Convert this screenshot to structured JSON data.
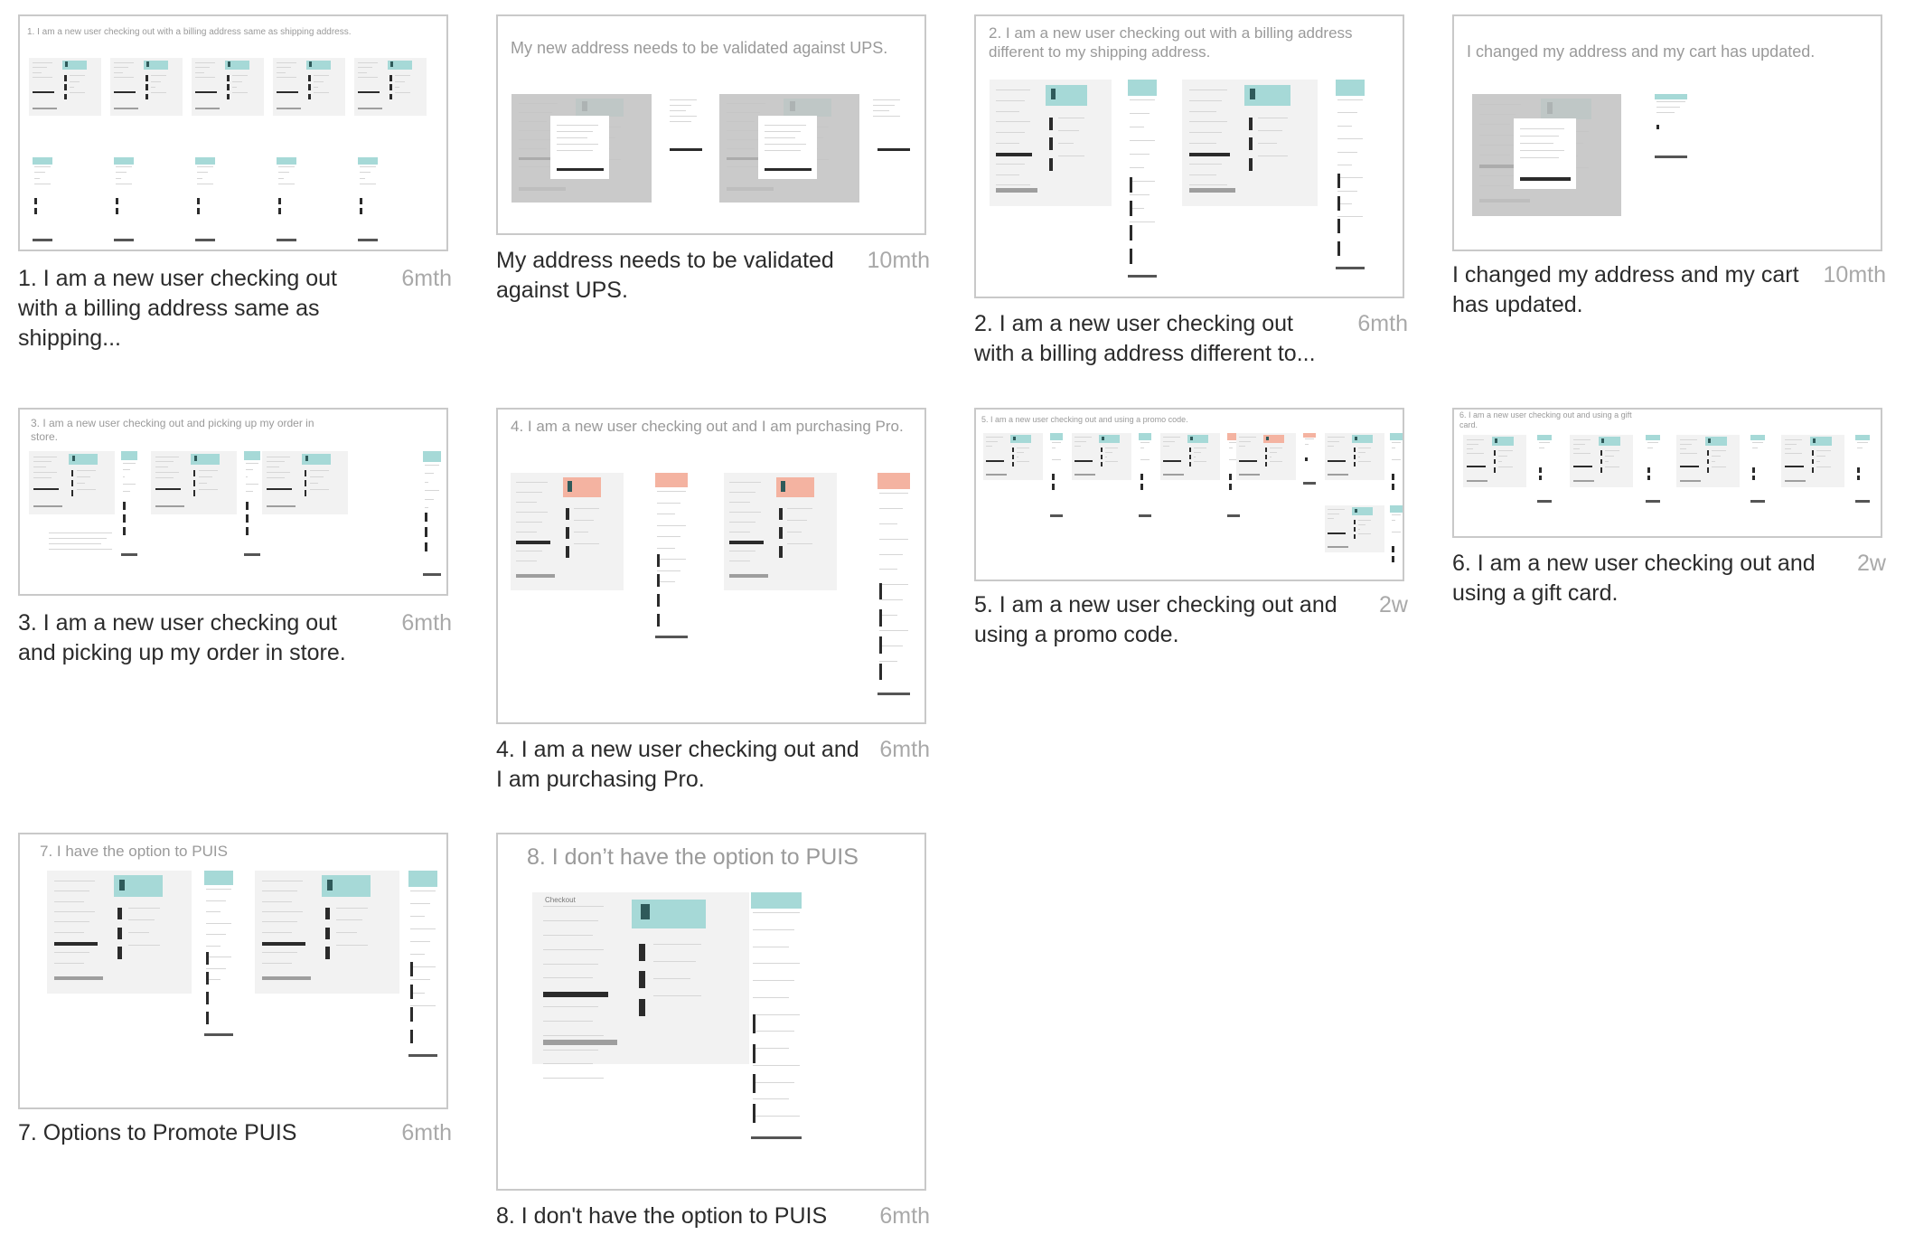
{
  "cards": [
    {
      "thumb_title": "1. I am a new user checking out with a billing address same as shipping address.",
      "caption": "1. I am a new user checking out with a billing address same as shipping...",
      "age": "6mth"
    },
    {
      "thumb_title": "My new address needs to be validated against UPS.",
      "caption": "My address needs to be validated against UPS.",
      "age": "10mth"
    },
    {
      "thumb_title": "2. I am a new user checking out with a billing address different to my shipping address.",
      "caption": "2. I am a new user checking out with a billing address different to...",
      "age": "6mth"
    },
    {
      "thumb_title": "I changed my address and my cart has updated.",
      "caption": "I changed my address and my cart has updated.",
      "age": "10mth"
    },
    {
      "thumb_title": "3. I am a new user checking out and picking up my order in store.",
      "caption": "3. I am a new user checking out and picking up my order in store.",
      "age": "6mth"
    },
    {
      "thumb_title": "4. I am a new user checking out and I am purchasing Pro.",
      "caption": "4. I am a new user checking out and I am purchasing Pro.",
      "age": "6mth"
    },
    {
      "thumb_title": "5. I am a new user checking out and using a promo code.",
      "caption": "5. I am a new user checking out and using a promo code.",
      "age": "2w"
    },
    {
      "thumb_title": "6. I am a new user checking out and using a gift card.",
      "caption": "6. I am a new user checking out and using a gift card.",
      "age": "2w"
    },
    {
      "thumb_title": "7. I have the option to PUIS",
      "caption": "7. Options to Promote PUIS",
      "age": "6mth"
    },
    {
      "thumb_title": "8. I don’t have the option to PUIS",
      "caption": "8. I don't have the option to PUIS",
      "age": "6mth"
    }
  ],
  "mock": {
    "checkout_label": "Checkout"
  },
  "colors": {
    "teal": "#a6d9d7",
    "salmon": "#f4b3a1",
    "modal_bg": "#c3c3c3",
    "panel": "#f2f2f2",
    "border": "#c9c9c9"
  }
}
